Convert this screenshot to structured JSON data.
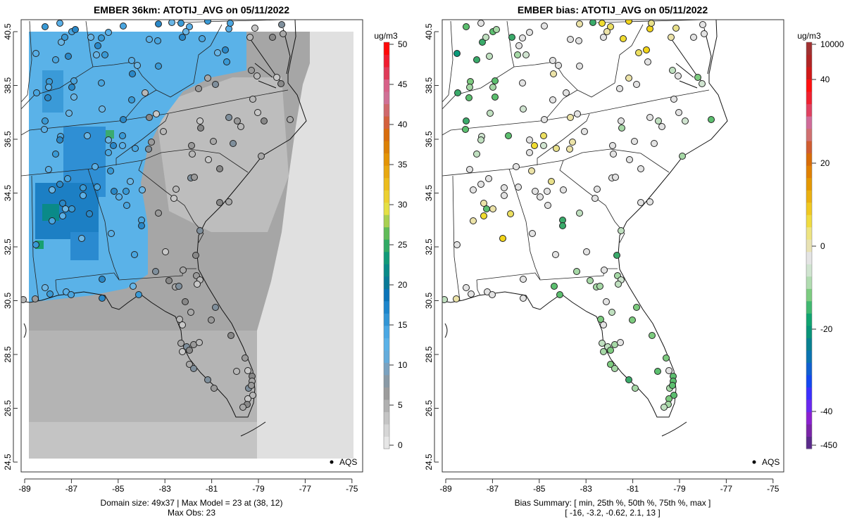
{
  "chart_data": [
    {
      "type": "map-heatmap",
      "title": "EMBER 36km: ATOTIJ_AVG on 05/11/2022",
      "units": "ug/m3",
      "x_ticks": [
        "-89",
        "-87",
        "-85",
        "-83",
        "-81",
        "-79",
        "-77",
        "-75"
      ],
      "y_ticks": [
        "24.5",
        "26.5",
        "28.5",
        "30.5",
        "32.5",
        "34.5",
        "36.5",
        "38.5",
        "40.5"
      ],
      "colorbar_ticks": [
        "0",
        "5",
        "10",
        "15",
        "20",
        "25",
        "30",
        "35",
        "40",
        "45",
        "50"
      ],
      "colorbar_range": [
        0,
        50
      ],
      "legend": "AQS",
      "caption_line1": "Domain size: 49x37 | Max Model = 23 at (38, 12)",
      "caption_line2": "Max Obs: 23",
      "domain_size": "49x37",
      "max_model": 23,
      "max_model_cell": [
        38,
        12
      ],
      "max_obs": 23
    },
    {
      "type": "map-scatter",
      "title": "EMBER bias: ATOTIJ_AVG on 05/11/2022",
      "units": "ug/m3",
      "x_ticks": [
        "-89",
        "-87",
        "-85",
        "-83",
        "-81",
        "-79",
        "-77",
        "-75"
      ],
      "y_ticks": [
        "24.5",
        "26.5",
        "28.5",
        "30.5",
        "32.5",
        "34.5",
        "36.5",
        "38.5",
        "40.5"
      ],
      "colorbar_ticks": [
        "-450",
        "-40",
        "-20",
        "0",
        "20",
        "40",
        "10000"
      ],
      "legend": "AQS",
      "caption_line1": "Bias Summary: [ min, 25th %, 50th %, 75th %, max ]",
      "caption_line2": "[ -16,   -3.2,   -0.62,   2.1,   13 ]",
      "bias_summary": {
        "min": -16,
        "p25": -3.2,
        "p50": -0.62,
        "p75": 2.1,
        "max": 13
      }
    }
  ]
}
